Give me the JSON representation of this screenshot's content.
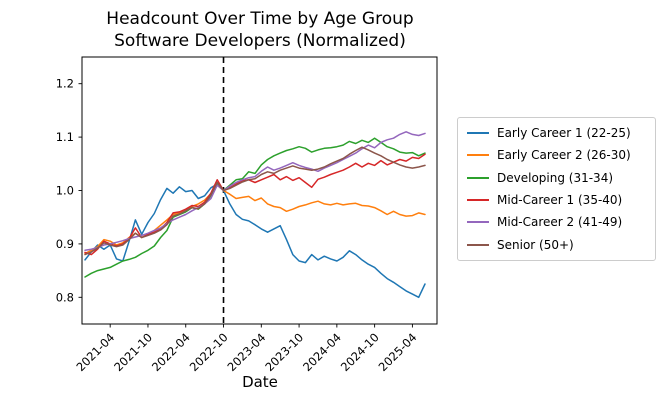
{
  "chart_data": {
    "type": "line",
    "title": "Headcount Over Time by Age Group",
    "subtitle": "Software Developers (Normalized)",
    "xlabel": "Date",
    "ylabel": "",
    "ylim": [
      0.75,
      1.25
    ],
    "yticks": [
      0.8,
      0.9,
      1.0,
      1.1,
      1.2
    ],
    "ytick_labels": [
      "0.8",
      "0.9",
      "1.0",
      "1.1",
      "1.2"
    ],
    "xtick_labels": [
      "2021-04",
      "2021-10",
      "2022-04",
      "2022-10",
      "2023-04",
      "2023-10",
      "2024-04",
      "2024-10",
      "2025-04"
    ],
    "grid": false,
    "legend_position": "right-outside",
    "vline": {
      "x": "2022-10",
      "style": "dashed",
      "color": "#000000"
    },
    "x": [
      "2020-12",
      "2021-01",
      "2021-02",
      "2021-03",
      "2021-04",
      "2021-05",
      "2021-06",
      "2021-07",
      "2021-08",
      "2021-09",
      "2021-10",
      "2021-11",
      "2021-12",
      "2022-01",
      "2022-02",
      "2022-03",
      "2022-04",
      "2022-05",
      "2022-06",
      "2022-07",
      "2022-08",
      "2022-09",
      "2022-10",
      "2022-11",
      "2022-12",
      "2023-01",
      "2023-02",
      "2023-03",
      "2023-04",
      "2023-05",
      "2023-06",
      "2023-07",
      "2023-08",
      "2023-09",
      "2023-10",
      "2023-11",
      "2023-12",
      "2024-01",
      "2024-02",
      "2024-03",
      "2024-04",
      "2024-05",
      "2024-06",
      "2024-07",
      "2024-08",
      "2024-09",
      "2024-10",
      "2024-11",
      "2024-12",
      "2025-01",
      "2025-02",
      "2025-03",
      "2025-04",
      "2025-05",
      "2025-06"
    ],
    "series": [
      {
        "name": "Early Career 1 (22-25)",
        "color": "#1f77b4",
        "values": [
          0.87,
          0.885,
          0.898,
          0.89,
          0.898,
          0.872,
          0.868,
          0.905,
          0.945,
          0.918,
          0.94,
          0.957,
          0.983,
          1.004,
          0.995,
          1.007,
          0.998,
          1.0,
          0.985,
          0.99,
          1.005,
          1.012,
          1.0,
          0.975,
          0.955,
          0.946,
          0.943,
          0.936,
          0.928,
          0.922,
          0.928,
          0.934,
          0.908,
          0.88,
          0.868,
          0.865,
          0.88,
          0.87,
          0.877,
          0.872,
          0.868,
          0.875,
          0.887,
          0.88,
          0.87,
          0.862,
          0.856,
          0.845,
          0.835,
          0.828,
          0.82,
          0.812,
          0.806,
          0.8,
          0.825
        ]
      },
      {
        "name": "Early Career 2 (26-30)",
        "color": "#ff7f0e",
        "values": [
          0.882,
          0.888,
          0.895,
          0.908,
          0.905,
          0.898,
          0.902,
          0.912,
          0.92,
          0.912,
          0.918,
          0.925,
          0.935,
          0.945,
          0.955,
          0.958,
          0.962,
          0.97,
          0.975,
          0.982,
          0.994,
          1.01,
          1.0,
          0.993,
          0.985,
          0.987,
          0.989,
          0.981,
          0.986,
          0.975,
          0.97,
          0.968,
          0.961,
          0.965,
          0.97,
          0.973,
          0.977,
          0.98,
          0.975,
          0.973,
          0.976,
          0.973,
          0.975,
          0.976,
          0.972,
          0.971,
          0.968,
          0.962,
          0.955,
          0.961,
          0.955,
          0.952,
          0.953,
          0.958,
          0.955
        ]
      },
      {
        "name": "Developing (31-34)",
        "color": "#2ca02c",
        "values": [
          0.838,
          0.845,
          0.85,
          0.853,
          0.856,
          0.862,
          0.868,
          0.871,
          0.875,
          0.882,
          0.888,
          0.896,
          0.912,
          0.925,
          0.95,
          0.955,
          0.96,
          0.968,
          0.965,
          0.975,
          0.99,
          1.012,
          1.0,
          1.01,
          1.02,
          1.022,
          1.035,
          1.032,
          1.048,
          1.058,
          1.065,
          1.07,
          1.075,
          1.078,
          1.082,
          1.079,
          1.072,
          1.076,
          1.079,
          1.08,
          1.082,
          1.085,
          1.092,
          1.088,
          1.094,
          1.09,
          1.098,
          1.09,
          1.082,
          1.078,
          1.072,
          1.07,
          1.071,
          1.065,
          1.07
        ]
      },
      {
        "name": "Mid-Career 1 (35-40)",
        "color": "#d62728",
        "values": [
          0.884,
          0.88,
          0.89,
          0.905,
          0.9,
          0.896,
          0.9,
          0.91,
          0.93,
          0.912,
          0.918,
          0.922,
          0.928,
          0.94,
          0.958,
          0.96,
          0.965,
          0.972,
          0.97,
          0.978,
          0.995,
          1.02,
          1.0,
          1.005,
          1.012,
          1.018,
          1.02,
          1.015,
          1.02,
          1.025,
          1.03,
          1.02,
          1.026,
          1.019,
          1.024,
          1.015,
          1.006,
          1.021,
          1.025,
          1.03,
          1.034,
          1.038,
          1.044,
          1.051,
          1.044,
          1.051,
          1.047,
          1.056,
          1.048,
          1.053,
          1.058,
          1.055,
          1.062,
          1.06,
          1.068
        ]
      },
      {
        "name": "Mid-Career 2 (41-49)",
        "color": "#9467bd",
        "values": [
          0.888,
          0.89,
          0.893,
          0.898,
          0.9,
          0.903,
          0.906,
          0.91,
          0.913,
          0.916,
          0.92,
          0.925,
          0.93,
          0.938,
          0.945,
          0.95,
          0.955,
          0.962,
          0.968,
          0.975,
          0.985,
          1.01,
          1.0,
          1.008,
          1.015,
          1.02,
          1.024,
          1.026,
          1.036,
          1.044,
          1.038,
          1.042,
          1.047,
          1.052,
          1.047,
          1.043,
          1.04,
          1.036,
          1.042,
          1.047,
          1.052,
          1.058,
          1.064,
          1.07,
          1.078,
          1.085,
          1.08,
          1.09,
          1.095,
          1.098,
          1.105,
          1.11,
          1.105,
          1.103,
          1.107
        ]
      },
      {
        "name": "Senior (50+)",
        "color": "#8c564b",
        "values": [
          0.88,
          0.885,
          0.892,
          0.902,
          0.898,
          0.895,
          0.898,
          0.908,
          0.92,
          0.912,
          0.916,
          0.92,
          0.926,
          0.936,
          0.952,
          0.956,
          0.962,
          0.968,
          0.966,
          0.975,
          0.992,
          1.015,
          1.0,
          1.004,
          1.01,
          1.016,
          1.02,
          1.022,
          1.03,
          1.035,
          1.032,
          1.038,
          1.042,
          1.046,
          1.042,
          1.04,
          1.038,
          1.04,
          1.044,
          1.05,
          1.055,
          1.06,
          1.068,
          1.075,
          1.081,
          1.076,
          1.07,
          1.065,
          1.058,
          1.053,
          1.048,
          1.044,
          1.042,
          1.044,
          1.047
        ]
      }
    ]
  },
  "colors": {
    "background": "#ffffff",
    "axis": "#000000",
    "legend_border": "#cccccc"
  }
}
